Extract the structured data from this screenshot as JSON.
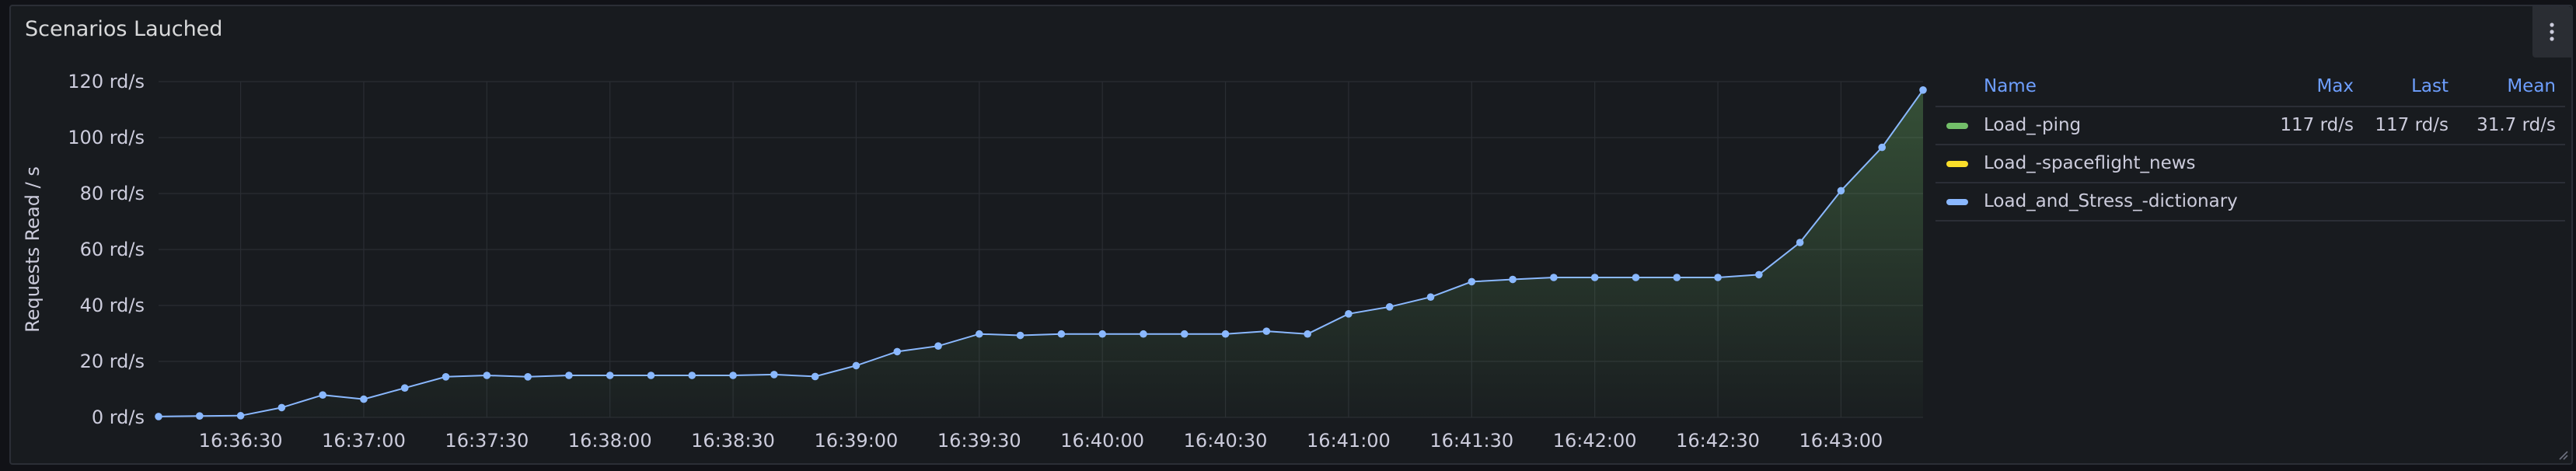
{
  "panel": {
    "title": "Scenarios Lauched",
    "menu_icon": "kebab-menu-icon"
  },
  "legend": {
    "headers": {
      "name": "Name",
      "max": "Max",
      "last": "Last",
      "mean": "Mean"
    },
    "rows": [
      {
        "name": "Load_-ping",
        "color": "#73bf69",
        "max": "117 rd/s",
        "last": "117 rd/s",
        "mean": "31.7 rd/s"
      },
      {
        "name": "Load_-spaceflight_news",
        "color": "#fade2a",
        "max": "",
        "last": "",
        "mean": ""
      },
      {
        "name": "Load_and_Stress_-dictionary",
        "color": "#8ab8ff",
        "max": "",
        "last": "",
        "mean": ""
      }
    ]
  },
  "chart_data": {
    "type": "line",
    "ylabel": "Requests Read / s",
    "ylim": [
      0,
      120
    ],
    "y_ticks": [
      0,
      20,
      40,
      60,
      80,
      100,
      120
    ],
    "y_tick_labels": [
      "0 rd/s",
      "20 rd/s",
      "40 rd/s",
      "60 rd/s",
      "80 rd/s",
      "100 rd/s",
      "120 rd/s"
    ],
    "x_tick_labels": [
      "16:36:30",
      "16:37:00",
      "16:37:30",
      "16:38:00",
      "16:38:30",
      "16:39:00",
      "16:39:30",
      "16:40:00",
      "16:40:30",
      "16:41:00",
      "16:41:30",
      "16:42:00",
      "16:42:30",
      "16:43:00"
    ],
    "x_range": [
      "16:36:10",
      "16:43:20"
    ],
    "grid": true,
    "legend_placement": "right",
    "series": [
      {
        "color": "#8ab8ff",
        "fill": "#73bf69",
        "x": [
          "16:36:10",
          "16:36:20",
          "16:36:30",
          "16:36:40",
          "16:36:50",
          "16:37:00",
          "16:37:10",
          "16:37:20",
          "16:37:30",
          "16:37:40",
          "16:37:50",
          "16:38:00",
          "16:38:10",
          "16:38:20",
          "16:38:30",
          "16:38:40",
          "16:38:50",
          "16:39:00",
          "16:39:10",
          "16:39:20",
          "16:39:30",
          "16:39:40",
          "16:39:50",
          "16:40:00",
          "16:40:10",
          "16:40:20",
          "16:40:30",
          "16:40:40",
          "16:40:50",
          "16:41:00",
          "16:41:10",
          "16:41:20",
          "16:41:30",
          "16:41:40",
          "16:41:50",
          "16:42:00",
          "16:42:10",
          "16:42:20",
          "16:42:30",
          "16:42:40",
          "16:42:50",
          "16:43:00",
          "16:43:10",
          "16:43:20"
        ],
        "values": [
          0.3,
          0.5,
          0.6,
          3.5,
          8,
          6.5,
          10.5,
          14.5,
          15,
          14.5,
          15,
          15,
          15,
          15,
          15,
          15.3,
          14.6,
          18.5,
          23.5,
          25.5,
          29.8,
          29.3,
          29.8,
          29.8,
          29.8,
          29.8,
          29.8,
          30.8,
          29.8,
          37,
          39.5,
          43,
          48.5,
          49.3,
          50,
          50,
          50,
          50,
          50,
          51,
          62.5,
          81,
          96.5,
          117
        ]
      }
    ]
  }
}
